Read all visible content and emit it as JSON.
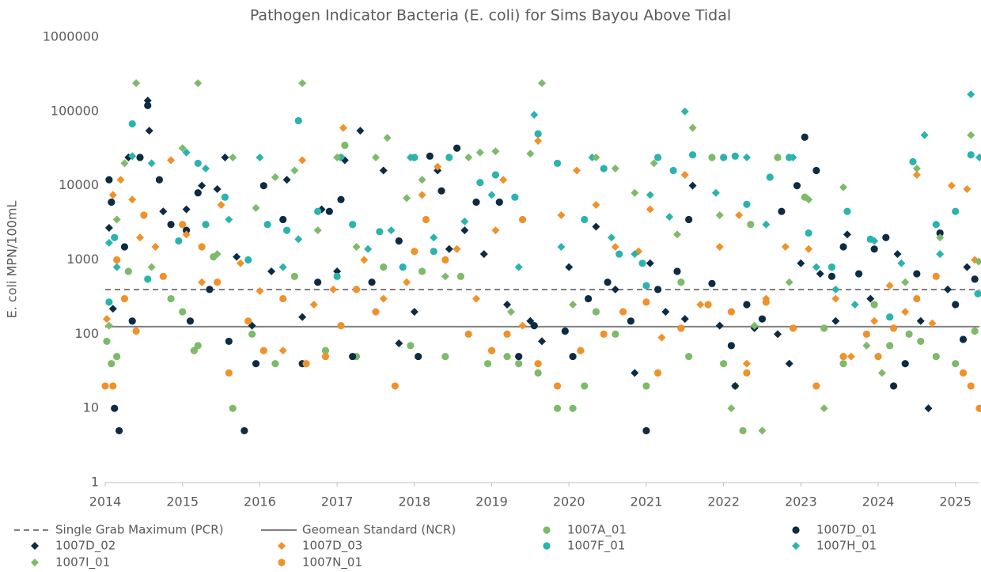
{
  "chart_data": {
    "type": "scatter",
    "title": "Pathogen Indicator Bacteria (E. coli) for Sims Bayou Above Tidal",
    "y_label": "E. coli MPN/100mL",
    "log_y": true,
    "xlim": [
      2014,
      2025.31
    ],
    "xticks": [
      2014,
      2015,
      2016,
      2017,
      2018,
      2019,
      2020,
      2021,
      2022,
      2023,
      2024,
      2025
    ],
    "ylim": [
      1,
      1000000
    ],
    "yticks": [
      1,
      10,
      100,
      1000,
      10000,
      100000,
      1000000
    ],
    "grid": false,
    "legend": "bottom",
    "reference_lines": [
      {
        "name": "Single Grab Maximum (PCR)",
        "value": 399,
        "color": "#7f7f7f",
        "style": "dashed"
      },
      {
        "name": "Geomean Standard (NCR)",
        "value": 126,
        "color": "#7f7f7f",
        "style": "solid"
      }
    ],
    "series": [
      {
        "name": "1007A_01",
        "color": "#7dba6a",
        "marker": "circle",
        "x": [
          2014.02,
          2014.08,
          2014.15,
          2014.3,
          2014.85,
          2015.0,
          2015.15,
          2015.2,
          2015.4,
          2015.65,
          2015.9,
          2016.2,
          2016.45,
          2016.85,
          2017.05,
          2017.1,
          2017.25,
          2017.6,
          2017.95,
          2018.1,
          2018.4,
          2018.6,
          2018.95,
          2019.2,
          2019.35,
          2019.6,
          2019.85,
          2020.05,
          2020.2,
          2020.35,
          2020.6,
          2021.0,
          2021.45,
          2021.55,
          2021.85,
          2022.0,
          2022.15,
          2022.25,
          2022.35,
          2022.7,
          2023.05,
          2023.3,
          2023.55,
          2023.95,
          2024.15,
          2024.4,
          2024.55,
          2024.75,
          2025.0,
          2025.25
        ],
        "values": [
          80,
          40,
          50,
          700,
          300,
          200,
          60,
          70,
          1100,
          10,
          100,
          40,
          600,
          60,
          24000,
          35000,
          50,
          800,
          70,
          700,
          50,
          600,
          40,
          50,
          40,
          30,
          10,
          10,
          20,
          200,
          100,
          20,
          500,
          50,
          24000,
          40,
          20,
          5,
          3000,
          24000,
          7000,
          120,
          40,
          250,
          70,
          100,
          80,
          50,
          40,
          110
        ]
      },
      {
        "name": "1007D_01",
        "color": "#0d2b42",
        "marker": "circle",
        "x": [
          2014.05,
          2014.08,
          2014.12,
          2014.18,
          2014.25,
          2014.35,
          2014.45,
          2014.55,
          2014.7,
          2014.85,
          2015.05,
          2015.1,
          2015.2,
          2015.35,
          2015.6,
          2015.8,
          2015.95,
          2016.05,
          2016.3,
          2016.55,
          2016.75,
          2016.9,
          2017.05,
          2017.2,
          2017.45,
          2017.8,
          2018.05,
          2018.2,
          2018.35,
          2018.55,
          2018.8,
          2019.1,
          2019.35,
          2019.55,
          2019.95,
          2020.05,
          2020.25,
          2020.5,
          2020.8,
          2021.0,
          2021.15,
          2021.4,
          2021.55,
          2021.85,
          2022.1,
          2022.3,
          2022.5,
          2022.75,
          2022.95,
          2023.05,
          2023.2,
          2023.4,
          2023.55,
          2023.75,
          2023.95,
          2024.1,
          2024.2,
          2024.35,
          2024.5,
          2024.8,
          2025.0,
          2025.1,
          2025.25
        ],
        "values": [
          12000,
          6000,
          10,
          5,
          1500,
          150,
          24000,
          120000,
          12000,
          3000,
          2500,
          150,
          8000,
          400,
          80,
          5,
          40,
          10000,
          3500,
          40,
          500,
          4500,
          6500,
          50,
          500,
          1800,
          50,
          25000,
          8500,
          32000,
          6000,
          6000,
          50,
          130,
          110,
          50,
          300,
          500,
          150,
          5,
          400,
          700,
          3500,
          480,
          70,
          250,
          160,
          4500,
          10000,
          45000,
          16000,
          600,
          1500,
          650,
          1400,
          2000,
          20,
          40,
          650,
          2300,
          250,
          85,
          550
        ]
      },
      {
        "name": "1007D_02",
        "color": "#0d2b42",
        "marker": "diamond",
        "x": [
          2014.05,
          2014.1,
          2014.3,
          2014.55,
          2014.57,
          2014.75,
          2015.05,
          2015.25,
          2015.45,
          2015.55,
          2015.7,
          2015.9,
          2016.15,
          2016.35,
          2016.55,
          2016.8,
          2017.0,
          2017.1,
          2017.3,
          2017.6,
          2017.8,
          2018.0,
          2018.3,
          2018.45,
          2018.65,
          2018.9,
          2019.2,
          2019.5,
          2019.65,
          2020.0,
          2020.35,
          2020.6,
          2020.85,
          2021.05,
          2021.25,
          2021.5,
          2021.6,
          2021.95,
          2022.15,
          2022.4,
          2022.7,
          2022.85,
          2023.0,
          2023.25,
          2023.45,
          2023.6,
          2023.9,
          2024.25,
          2024.55,
          2024.65,
          2024.9,
          2025.15
        ],
        "values": [
          2700,
          220,
          24000,
          140000,
          55000,
          4500,
          4800,
          10000,
          9000,
          24000,
          1100,
          130,
          700,
          12000,
          170,
          4800,
          700,
          22000,
          55000,
          16000,
          75,
          200,
          16000,
          1400,
          2500,
          1200,
          250,
          150,
          80,
          800,
          2800,
          400,
          30,
          900,
          200,
          160,
          10000,
          130,
          20,
          120,
          100,
          40,
          900,
          650,
          150,
          2200,
          300,
          1200,
          150,
          10,
          400,
          800
        ]
      },
      {
        "name": "1007D_03",
        "color": "#f0912a",
        "marker": "diamond",
        "x": [
          2014.02,
          2014.1,
          2014.2,
          2014.35,
          2014.45,
          2014.65,
          2014.85,
          2015.05,
          2015.25,
          2015.5,
          2015.75,
          2016.0,
          2016.3,
          2016.55,
          2016.7,
          2016.95,
          2017.08,
          2017.35,
          2017.6,
          2017.9,
          2018.1,
          2018.3,
          2018.55,
          2018.8,
          2019.05,
          2019.15,
          2019.4,
          2019.6,
          2019.9,
          2020.1,
          2020.35,
          2020.6,
          2020.9,
          2021.05,
          2021.2,
          2021.5,
          2021.7,
          2021.95,
          2022.2,
          2022.3,
          2022.55,
          2022.8,
          2023.1,
          2023.45,
          2023.65,
          2023.95,
          2024.15,
          2024.35,
          2024.5,
          2024.7,
          2024.95,
          2025.15,
          2025.25
        ],
        "values": [
          160,
          7500,
          12000,
          6500,
          2000,
          1500,
          22000,
          2200,
          500,
          5500,
          900,
          380,
          60,
          22000,
          250,
          400,
          60000,
          1000,
          300,
          500,
          7500,
          18000,
          1400,
          300,
          2500,
          12000,
          130,
          40000,
          4000,
          16000,
          5500,
          1500,
          1300,
          4800,
          90,
          14000,
          250,
          1500,
          4000,
          40,
          300,
          1500,
          1400,
          300,
          50,
          150,
          450,
          200,
          14000,
          140,
          10000,
          9000,
          1000
        ]
      },
      {
        "name": "1007F_01",
        "color": "#2bb3ae",
        "marker": "circle",
        "x": [
          2014.05,
          2014.12,
          2014.35,
          2014.55,
          2014.95,
          2015.2,
          2015.3,
          2015.55,
          2015.85,
          2016.1,
          2016.35,
          2016.5,
          2016.75,
          2017.0,
          2017.2,
          2017.55,
          2017.85,
          2018.0,
          2018.25,
          2018.45,
          2018.85,
          2019.05,
          2019.3,
          2019.6,
          2019.85,
          2020.2,
          2020.45,
          2020.65,
          2020.95,
          2021.0,
          2021.15,
          2021.35,
          2021.6,
          2022.0,
          2022.15,
          2022.3,
          2022.6,
          2022.85,
          2023.1,
          2023.4,
          2023.6,
          2023.9,
          2024.15,
          2024.45,
          2024.75,
          2025.0,
          2025.2,
          2025.29
        ],
        "values": [
          270,
          2000,
          68000,
          550,
          1800,
          20000,
          3000,
          7000,
          1000,
          3000,
          2500,
          75000,
          4500,
          600,
          3000,
          2400,
          800,
          24000,
          1300,
          24000,
          11000,
          14000,
          7000,
          50000,
          20000,
          3500,
          17000,
          1200,
          900,
          450,
          24000,
          16000,
          26000,
          24000,
          25000,
          5600,
          13000,
          24000,
          2300,
          800,
          4500,
          1900,
          170,
          21000,
          3000,
          4500,
          26000,
          350
        ]
      },
      {
        "name": "1007H_01",
        "color": "#2bb3ae",
        "marker": "diamond",
        "x": [
          2014.05,
          2014.15,
          2014.35,
          2014.6,
          2015.05,
          2015.3,
          2015.6,
          2016.0,
          2016.3,
          2016.5,
          2017.05,
          2017.4,
          2017.7,
          2017.95,
          2018.25,
          2018.65,
          2019.0,
          2019.35,
          2019.55,
          2019.9,
          2020.3,
          2020.55,
          2020.85,
          2021.05,
          2021.3,
          2021.5,
          2021.9,
          2022.3,
          2022.55,
          2022.9,
          2023.2,
          2023.45,
          2023.7,
          2023.95,
          2024.3,
          2024.6,
          2024.8,
          2025.2,
          2025.31
        ],
        "values": [
          1700,
          800,
          25000,
          20000,
          28000,
          17000,
          3500,
          24000,
          800,
          1900,
          24000,
          1400,
          2500,
          24000,
          2000,
          3300,
          7500,
          800,
          90000,
          1500,
          24000,
          2000,
          1200,
          7500,
          3800,
          100000,
          8000,
          24000,
          3000,
          24000,
          800,
          400,
          250,
          1800,
          900,
          48000,
          1200,
          170000,
          24000
        ]
      },
      {
        "name": "1007I_01",
        "color": "#7dba6a",
        "marker": "diamond",
        "x": [
          2014.05,
          2014.15,
          2014.25,
          2014.4,
          2014.6,
          2015.0,
          2015.2,
          2015.45,
          2015.65,
          2015.95,
          2016.2,
          2016.45,
          2016.55,
          2016.75,
          2017.0,
          2017.25,
          2017.5,
          2017.65,
          2017.9,
          2018.1,
          2018.4,
          2018.7,
          2018.85,
          2019.05,
          2019.25,
          2019.5,
          2019.65,
          2020.05,
          2020.35,
          2020.6,
          2020.85,
          2021.1,
          2021.4,
          2021.6,
          2021.95,
          2022.1,
          2022.4,
          2022.5,
          2022.85,
          2023.1,
          2023.3,
          2023.55,
          2023.85,
          2024.05,
          2024.35,
          2024.5,
          2024.8,
          2025.2,
          2025.3
        ],
        "values": [
          130,
          3500,
          20000,
          240000,
          800,
          32000,
          240000,
          1200,
          24000,
          5000,
          13000,
          16000,
          240000,
          2500,
          24000,
          1500,
          24000,
          44000,
          6800,
          12000,
          600,
          24000,
          28000,
          29000,
          200,
          27000,
          240000,
          250,
          24000,
          17000,
          8000,
          20000,
          2200,
          60000,
          4000,
          10,
          130,
          5,
          500,
          6500,
          10,
          9500,
          70,
          30,
          500,
          17000,
          2000,
          48000,
          950
        ]
      },
      {
        "name": "1007N_01",
        "color": "#f0912a",
        "marker": "circle",
        "x": [
          2014.0,
          2014.1,
          2014.15,
          2014.25,
          2014.4,
          2014.5,
          2014.75,
          2015.0,
          2015.25,
          2015.45,
          2015.6,
          2015.85,
          2016.05,
          2016.3,
          2016.6,
          2016.85,
          2017.05,
          2017.25,
          2017.5,
          2017.75,
          2018.0,
          2018.15,
          2018.4,
          2018.7,
          2019.0,
          2019.2,
          2019.4,
          2019.6,
          2019.85,
          2020.15,
          2020.45,
          2020.7,
          2021.0,
          2021.15,
          2021.45,
          2021.8,
          2022.1,
          2022.3,
          2022.55,
          2022.9,
          2023.2,
          2023.55,
          2023.85,
          2024.0,
          2024.2,
          2024.5,
          2024.75,
          2025.1,
          2025.2,
          2025.31
        ],
        "values": [
          20,
          20,
          1000,
          300,
          110,
          4000,
          600,
          3000,
          1500,
          500,
          30,
          150,
          60,
          300,
          40,
          50,
          130,
          400,
          200,
          20,
          1300,
          3500,
          1000,
          100,
          60,
          100,
          3500,
          40,
          20,
          60,
          100,
          200,
          270,
          30,
          120,
          250,
          200,
          30,
          270,
          120,
          20,
          50,
          100,
          50,
          120,
          300,
          600,
          30,
          20,
          10
        ]
      }
    ]
  }
}
